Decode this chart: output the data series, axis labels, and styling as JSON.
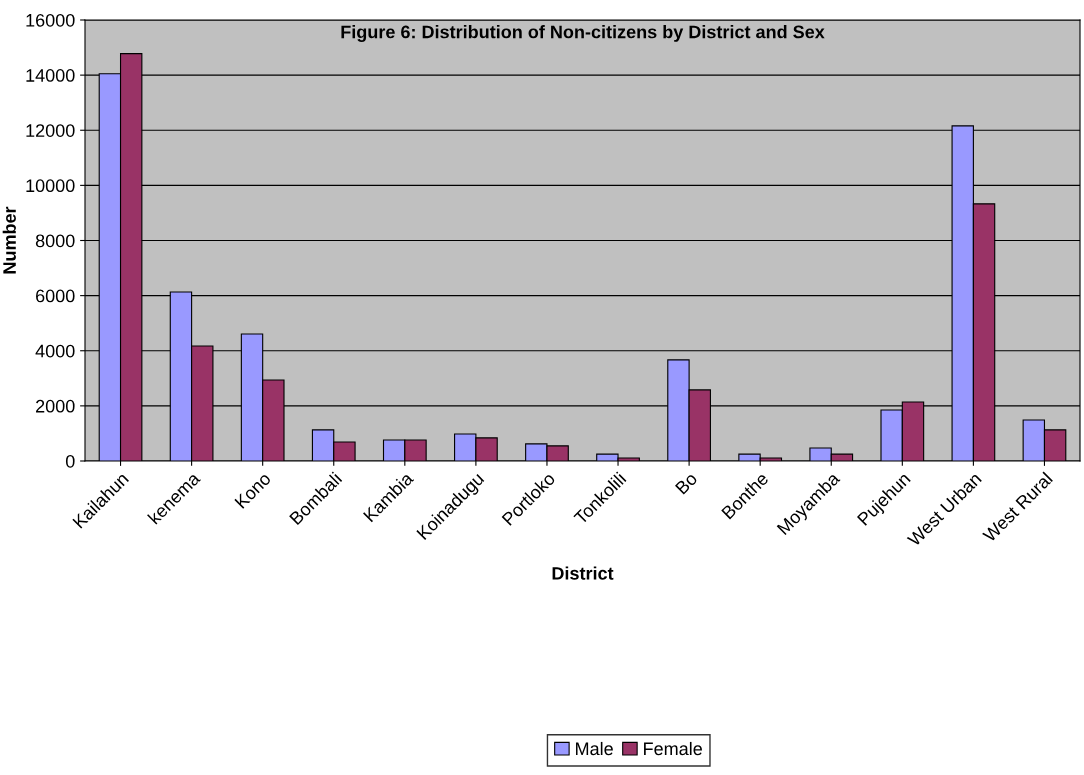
{
  "chart_data": {
    "type": "bar",
    "title": "Figure 6: Distribution of Non-citizens by District and Sex",
    "xlabel": "District",
    "ylabel": "Number",
    "categories": [
      "Kailahun",
      "kenema",
      "Kono",
      "Bombali",
      "Kambia",
      "Koinadugu",
      "Portloko",
      "Tonkolili",
      "Bo",
      "Bonthe",
      "Moyamba",
      "Pujehun",
      "West Urban",
      "West Rural"
    ],
    "series": [
      {
        "name": "Male",
        "color": "#9999ff",
        "values": [
          14050,
          6130,
          4610,
          1130,
          760,
          980,
          620,
          250,
          3670,
          250,
          470,
          1850,
          12160,
          1490
        ]
      },
      {
        "name": "Female",
        "color": "#993366",
        "values": [
          14780,
          4170,
          2940,
          690,
          760,
          840,
          550,
          110,
          2580,
          110,
          250,
          2140,
          9330,
          1130
        ]
      }
    ],
    "ylim": [
      0,
      16000
    ],
    "yticks": [
      0,
      2000,
      4000,
      6000,
      8000,
      10000,
      12000,
      14000,
      16000
    ],
    "grid": "y",
    "legend": "bottom"
  }
}
